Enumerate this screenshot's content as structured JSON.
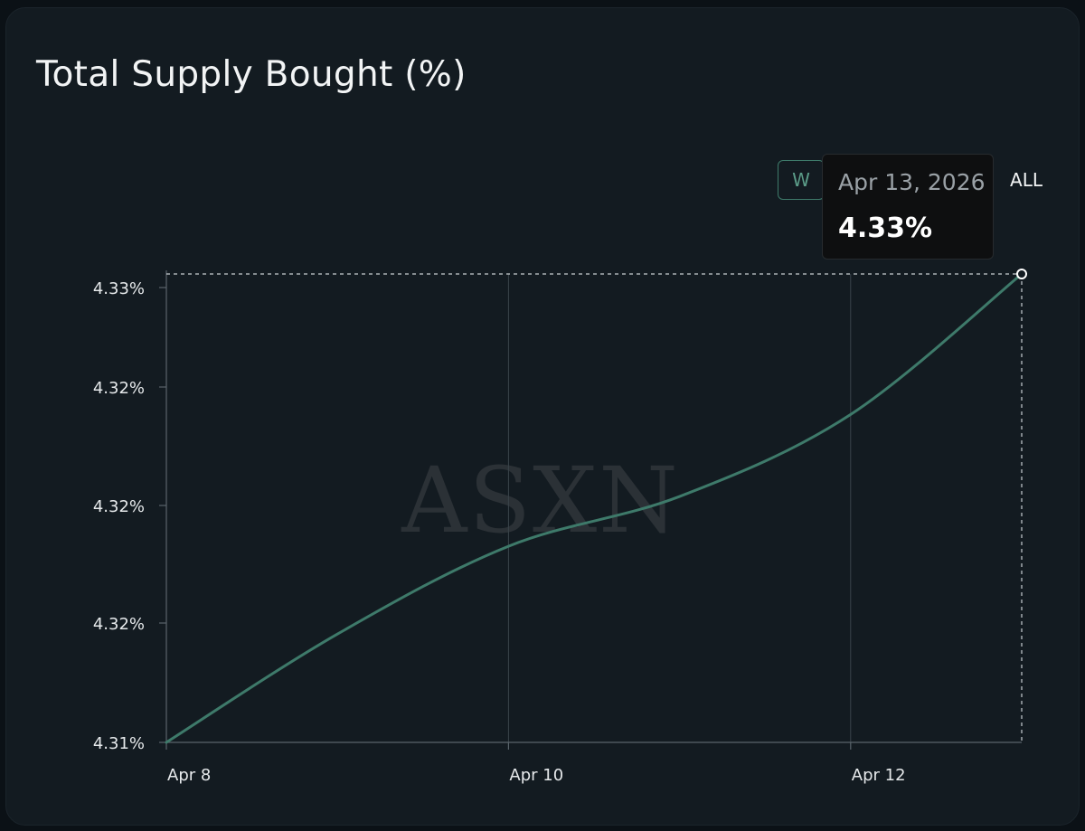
{
  "title": "Total Supply Bought (%)",
  "range_buttons": {
    "week": "W",
    "all": "ALL"
  },
  "tooltip": {
    "date": "Apr 13, 2026",
    "value": "4.33%"
  },
  "watermark": "ASXN",
  "colors": {
    "background": "#131b21",
    "line": "#3e7a6a",
    "grid": "#3a444b",
    "text": "#e6e9eb"
  },
  "chart_data": {
    "type": "line",
    "title": "Total Supply Bought (%)",
    "xlabel": "",
    "ylabel": "",
    "x_tick_labels": [
      "Apr 8",
      "Apr 10",
      "Apr 12"
    ],
    "y_tick_labels": [
      "4.33%",
      "4.32%",
      "4.32%",
      "4.32%",
      "4.31%"
    ],
    "x": [
      "2026-04-08",
      "2026-04-09",
      "2026-04-10",
      "2026-04-11",
      "2026-04-12",
      "2026-04-13"
    ],
    "values": [
      4.3125,
      4.3162,
      4.3192,
      4.3209,
      4.3237,
      4.3285
    ],
    "ylim": [
      4.3125,
      4.3285
    ],
    "grid": "vertical",
    "legend": "none",
    "highlighted_point": {
      "x": "2026-04-13",
      "y": 4.33
    }
  }
}
